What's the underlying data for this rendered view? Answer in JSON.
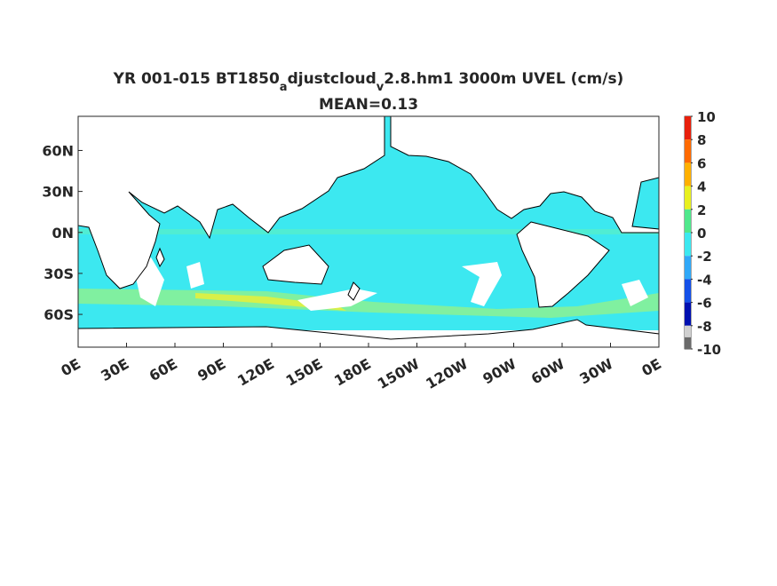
{
  "title": [
    "YR 001-015 BT1850",
    "a",
    "djustcloud",
    "v",
    "2.8.hm1 3000m UVEL (cm/s)"
  ],
  "subtitle": "MEAN=0.13",
  "map": {
    "xlim": [
      0,
      360
    ],
    "ylim": [
      -84,
      85
    ],
    "lat_ticks": [
      {
        "value": 60,
        "label": "60N"
      },
      {
        "value": 30,
        "label": "30N"
      },
      {
        "value": 0,
        "label": "0N"
      },
      {
        "value": -30,
        "label": "30S"
      },
      {
        "value": -60,
        "label": "60S"
      }
    ],
    "lon_ticks": [
      {
        "value": 0,
        "label": "0E"
      },
      {
        "value": 30,
        "label": "30E"
      },
      {
        "value": 60,
        "label": "60E"
      },
      {
        "value": 90,
        "label": "90E"
      },
      {
        "value": 120,
        "label": "120E"
      },
      {
        "value": 150,
        "label": "150E"
      },
      {
        "value": 180,
        "label": "180E"
      },
      {
        "value": 210,
        "label": "150W"
      },
      {
        "value": 240,
        "label": "120W"
      },
      {
        "value": 270,
        "label": "90W"
      },
      {
        "value": 300,
        "label": "60W"
      },
      {
        "value": 330,
        "label": "30W"
      },
      {
        "value": 360,
        "label": "0E"
      }
    ]
  },
  "colorbar": {
    "lim": [
      -10,
      10
    ],
    "ticks": [
      10,
      8,
      6,
      4,
      2,
      0,
      -2,
      -4,
      -6,
      -8,
      -10
    ],
    "levels": [
      10,
      8,
      6,
      4,
      2,
      0,
      -2,
      -4,
      -6,
      -8,
      -9,
      -10
    ],
    "colors": [
      "#e8200c",
      "#ff6a00",
      "#ffb000",
      "#e8f020",
      "#50e88c",
      "#3ce8f0",
      "#30a8f8",
      "#1450e8",
      "#0010b0",
      "#d0d0d0",
      "#6a6a6a"
    ]
  }
}
